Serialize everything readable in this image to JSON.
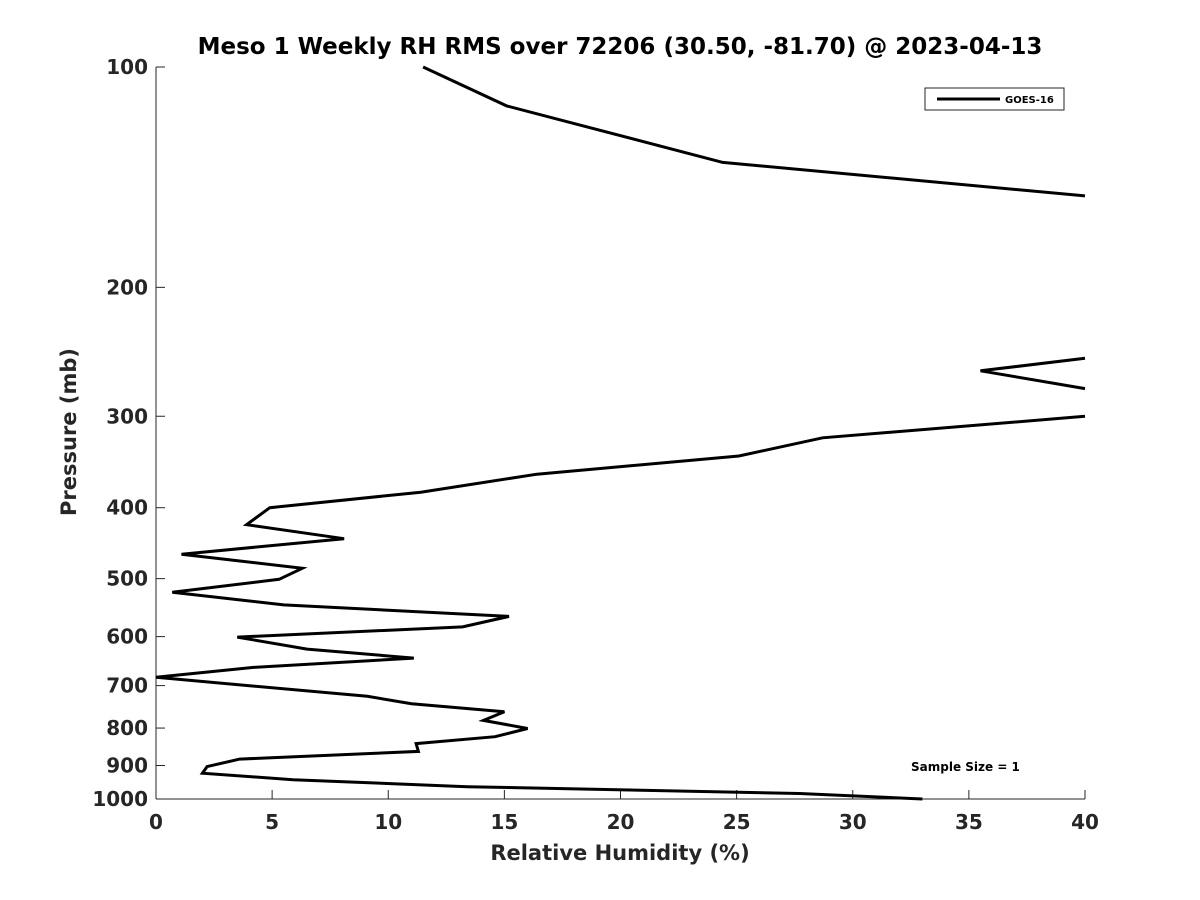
{
  "chart_data": {
    "type": "line",
    "title": "Meso 1 Weekly RH RMS over 72206 (30.50, -81.70) @ 2023-04-13",
    "xlabel": "Relative Humidity (%)",
    "ylabel": "Pressure (mb)",
    "xlim": [
      0,
      40
    ],
    "ylim": [
      1000,
      100
    ],
    "y_scale": "log",
    "y_reversed": true,
    "grid": false,
    "legend_position": "top-right",
    "x_ticks": [
      "0",
      "5",
      "10",
      "15",
      "20",
      "25",
      "30",
      "35",
      "40"
    ],
    "y_ticks": [
      "100",
      "200",
      "300",
      "400",
      "500",
      "600",
      "700",
      "800",
      "900",
      "1000"
    ],
    "series": [
      {
        "name": "GOES-16",
        "color": "#000000",
        "points": [
          [
            11.5,
            100
          ],
          [
            15.1,
            113
          ],
          [
            24.4,
            135
          ],
          [
            40.0,
            150
          ],
          [
            null,
            null
          ],
          [
            40.0,
            250
          ],
          [
            35.5,
            260
          ],
          [
            40.0,
            275
          ],
          [
            null,
            null
          ],
          [
            40.0,
            300
          ],
          [
            28.7,
            321
          ],
          [
            25.1,
            340
          ],
          [
            16.4,
            360
          ],
          [
            11.4,
            381
          ],
          [
            4.9,
            400
          ],
          [
            3.9,
            422
          ],
          [
            8.1,
            441
          ],
          [
            1.1,
            463
          ],
          [
            6.3,
            484
          ],
          [
            5.3,
            501
          ],
          [
            0.7,
            522
          ],
          [
            5.5,
            543
          ],
          [
            15.2,
            563
          ],
          [
            13.2,
            582
          ],
          [
            3.5,
            601
          ],
          [
            6.5,
            624
          ],
          [
            11.1,
            642
          ],
          [
            4.2,
            661
          ],
          [
            0.0,
            682
          ],
          [
            9.1,
            724
          ],
          [
            11.0,
            741
          ],
          [
            15.0,
            760
          ],
          [
            14.1,
            781
          ],
          [
            16.0,
            801
          ],
          [
            14.6,
            822
          ],
          [
            11.2,
            840
          ],
          [
            11.3,
            861
          ],
          [
            3.6,
            882
          ],
          [
            2.2,
            903
          ],
          [
            2.0,
            922
          ],
          [
            5.9,
            941
          ],
          [
            13.4,
            962
          ],
          [
            27.7,
            983
          ],
          [
            33.0,
            1000
          ]
        ]
      }
    ],
    "annotation": "Sample Size = 1"
  }
}
